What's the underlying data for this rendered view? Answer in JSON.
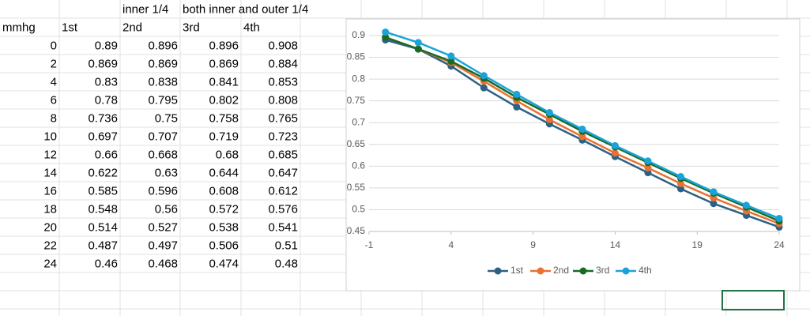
{
  "table": {
    "top": [
      "inner 1/4",
      "both inner and outer 1/4"
    ],
    "headers": [
      "mmhg",
      "1st",
      "2nd",
      "3rd",
      "4th"
    ],
    "rows": [
      [
        0,
        0.89,
        0.896,
        0.896,
        0.908
      ],
      [
        2,
        0.869,
        0.869,
        0.869,
        0.884
      ],
      [
        4,
        0.83,
        0.838,
        0.841,
        0.853
      ],
      [
        6,
        0.78,
        0.795,
        0.802,
        0.808
      ],
      [
        8,
        0.736,
        0.75,
        0.758,
        0.765
      ],
      [
        10,
        0.697,
        0.707,
        0.719,
        0.723
      ],
      [
        12,
        0.66,
        0.668,
        0.68,
        0.685
      ],
      [
        14,
        0.622,
        0.63,
        0.644,
        0.647
      ],
      [
        16,
        0.585,
        0.596,
        0.608,
        0.612
      ],
      [
        18,
        0.548,
        0.56,
        0.572,
        0.576
      ],
      [
        20,
        0.514,
        0.527,
        0.538,
        0.541
      ],
      [
        22,
        0.487,
        0.497,
        0.506,
        0.51
      ],
      [
        24,
        0.46,
        0.468,
        0.474,
        0.48
      ]
    ]
  },
  "chart_data": {
    "type": "line",
    "x": [
      0,
      2,
      4,
      6,
      8,
      10,
      12,
      14,
      16,
      18,
      20,
      22,
      24
    ],
    "series": [
      {
        "name": "1st",
        "color": "#2c6184",
        "values": [
          0.89,
          0.869,
          0.83,
          0.78,
          0.736,
          0.697,
          0.66,
          0.622,
          0.585,
          0.548,
          0.514,
          0.487,
          0.46
        ]
      },
      {
        "name": "2nd",
        "color": "#e97132",
        "values": [
          0.896,
          0.869,
          0.838,
          0.795,
          0.75,
          0.707,
          0.668,
          0.63,
          0.596,
          0.56,
          0.527,
          0.497,
          0.468
        ]
      },
      {
        "name": "3rd",
        "color": "#196b24",
        "values": [
          0.896,
          0.869,
          0.841,
          0.802,
          0.758,
          0.719,
          0.68,
          0.644,
          0.608,
          0.572,
          0.538,
          0.506,
          0.474
        ]
      },
      {
        "name": "4th",
        "color": "#1aa3da",
        "values": [
          0.908,
          0.884,
          0.853,
          0.808,
          0.765,
          0.723,
          0.685,
          0.647,
          0.612,
          0.576,
          0.541,
          0.51,
          0.48
        ]
      }
    ],
    "xlim": [
      -1,
      24
    ],
    "xticks": [
      -1,
      4,
      9,
      14,
      19,
      24
    ],
    "ylim": [
      0.45,
      0.9
    ],
    "yticks": [
      0.45,
      0.5,
      0.55,
      0.6,
      0.65,
      0.7,
      0.75,
      0.8,
      0.85,
      0.9
    ],
    "grid": true,
    "legend": "bottom"
  }
}
